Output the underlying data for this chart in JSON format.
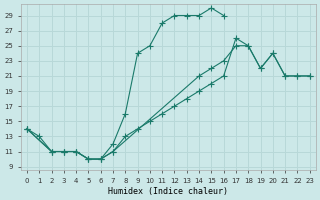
{
  "xlabel": "Humidex (Indice chaleur)",
  "bg_color": "#cce8e8",
  "grid_color": "#b8d8d8",
  "line_color": "#1a7a6a",
  "xlim": [
    -0.5,
    23.5
  ],
  "ylim": [
    8.5,
    30.5
  ],
  "xticks": [
    0,
    1,
    2,
    3,
    4,
    5,
    6,
    7,
    8,
    9,
    10,
    11,
    12,
    13,
    14,
    15,
    16,
    17,
    18,
    19,
    20,
    21,
    22,
    23
  ],
  "yticks": [
    9,
    11,
    13,
    15,
    17,
    19,
    21,
    23,
    25,
    27,
    29
  ],
  "line1_x": [
    0,
    1,
    2,
    3,
    4,
    5,
    6,
    7,
    8,
    9,
    10,
    11,
    12,
    13,
    14,
    15,
    16
  ],
  "line1_y": [
    14,
    13,
    11,
    11,
    11,
    10,
    10,
    12,
    16,
    24,
    25,
    28,
    29,
    29,
    29,
    30,
    29
  ],
  "line2_x": [
    0,
    2,
    3,
    4,
    5,
    6,
    7,
    8,
    9,
    10,
    11,
    12,
    13,
    14,
    15,
    16,
    17,
    18,
    19,
    20,
    21,
    22,
    23
  ],
  "line2_y": [
    14,
    11,
    11,
    11,
    10,
    10,
    11,
    13,
    14,
    15,
    16,
    17,
    18,
    19,
    20,
    21,
    26,
    25,
    22,
    24,
    21,
    21,
    21
  ],
  "line3_x": [
    0,
    2,
    3,
    4,
    5,
    6,
    7,
    14,
    15,
    16,
    17,
    18,
    19,
    20,
    21,
    22,
    23
  ],
  "line3_y": [
    14,
    11,
    11,
    11,
    10,
    10,
    11,
    21,
    22,
    23,
    25,
    25,
    22,
    24,
    21,
    21,
    21
  ]
}
